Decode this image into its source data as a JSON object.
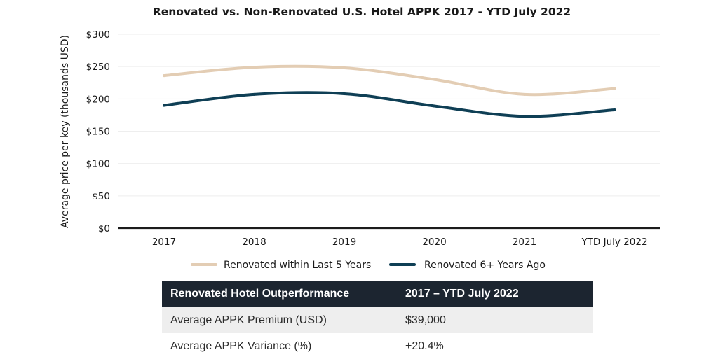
{
  "chart_data": {
    "type": "line",
    "title": "Renovated vs. Non-Renovated U.S. Hotel APPK 2017 - YTD July 2022",
    "xlabel": "",
    "ylabel": "Average price per key (thousands USD)",
    "categories": [
      "2017",
      "2018",
      "2019",
      "2020",
      "2021",
      "YTD July 2022"
    ],
    "y_ticks": [
      "$0",
      "$50",
      "$100",
      "$150",
      "$200",
      "$250",
      "$300"
    ],
    "ylim": [
      0,
      300
    ],
    "grid": true,
    "legend_position": "bottom",
    "series": [
      {
        "name": "Renovated within Last 5 Years",
        "color": "#e3cdb4",
        "values": [
          236,
          249,
          248,
          230,
          207,
          216
        ]
      },
      {
        "name": "Renovated 6+ Years Ago",
        "color": "#0f3f55",
        "values": [
          190,
          207,
          208,
          189,
          173,
          183
        ]
      }
    ]
  },
  "table": {
    "headers": [
      "Renovated Hotel Outperformance",
      "2017 – YTD July 2022"
    ],
    "rows": [
      [
        "Average APPK Premium (USD)",
        "$39,000"
      ],
      [
        "Average APPK Variance (%)",
        "+20.4%"
      ]
    ]
  }
}
